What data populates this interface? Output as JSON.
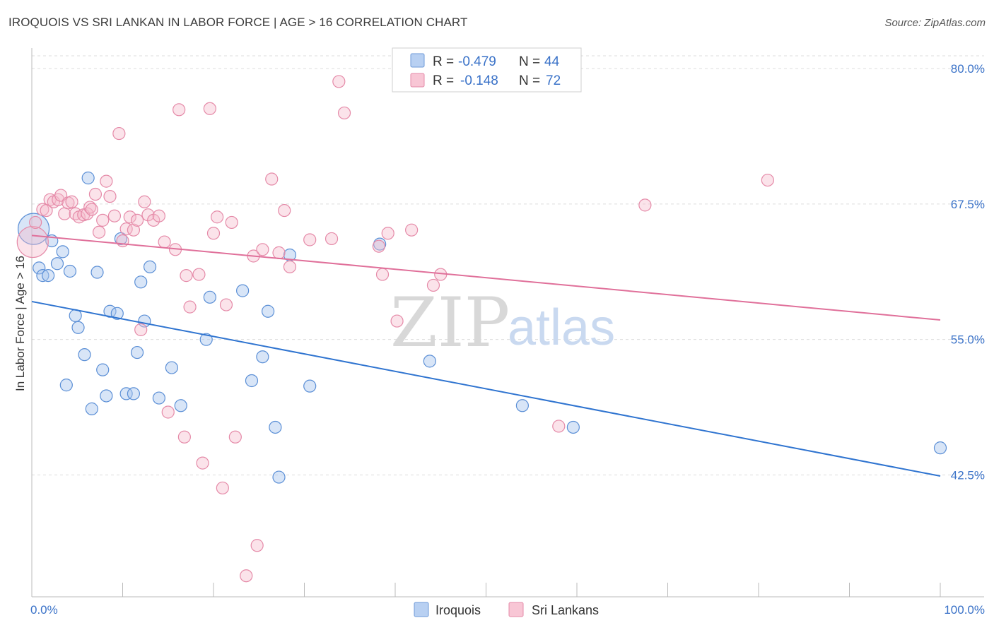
{
  "title": "IROQUOIS VS SRI LANKAN IN LABOR FORCE | AGE > 16 CORRELATION CHART",
  "source": "Source: ZipAtlas.com",
  "colors": {
    "iroquois": "#5b8fd6",
    "iroquois_fill": "#a9c6ee",
    "srilankan": "#e06b95",
    "srilankan_fill": "#f5b8cb",
    "accent": "#3a72c8"
  },
  "legend": {
    "rows": [
      {
        "r_label": "R = ",
        "r_value": "-0.479",
        "n_label": "N = ",
        "n_value": "44"
      },
      {
        "r_label": "R = ",
        "r_value": "-0.148",
        "n_label": "N = ",
        "n_value": "72"
      }
    ]
  },
  "bottom_legend": [
    "Iroquois",
    "Sri Lankans"
  ],
  "watermark": {
    "zip": "ZIP",
    "atlas": "atlas"
  },
  "chart_data": {
    "type": "scatter",
    "title": "IROQUOIS VS SRI LANKAN IN LABOR FORCE | AGE > 16 CORRELATION CHART",
    "xlabel": "",
    "ylabel": "In Labor Force | Age > 16",
    "xlim": [
      0,
      100
    ],
    "ylim": [
      32,
      80.5
    ],
    "x_tick_labels": [
      "0.0%",
      "100.0%"
    ],
    "y_ticks": [
      42.5,
      55.0,
      67.5,
      80.0
    ],
    "y_tick_labels": [
      "42.5%",
      "55.0%",
      "67.5%",
      "80.0%"
    ],
    "grid": true,
    "legend_position": "top-center",
    "series": [
      {
        "name": "Iroquois",
        "r": -0.479,
        "n": 44,
        "trend": {
          "x": [
            0,
            100
          ],
          "y": [
            58.5,
            42.4
          ]
        },
        "points": [
          [
            0.2,
            65.2
          ],
          [
            0.8,
            61.6
          ],
          [
            1.2,
            60.9
          ],
          [
            1.8,
            60.9
          ],
          [
            2.2,
            64.1
          ],
          [
            2.8,
            62.0
          ],
          [
            3.4,
            63.1
          ],
          [
            4.2,
            61.3
          ],
          [
            4.8,
            57.2
          ],
          [
            5.1,
            56.1
          ],
          [
            5.8,
            53.6
          ],
          [
            6.2,
            69.9
          ],
          [
            3.8,
            50.8
          ],
          [
            6.6,
            48.6
          ],
          [
            7.2,
            61.2
          ],
          [
            7.8,
            52.2
          ],
          [
            8.2,
            49.8
          ],
          [
            8.6,
            57.6
          ],
          [
            9.4,
            57.4
          ],
          [
            9.8,
            64.3
          ],
          [
            10.4,
            50.0
          ],
          [
            11.2,
            50.0
          ],
          [
            11.6,
            53.8
          ],
          [
            12.0,
            60.3
          ],
          [
            12.4,
            56.7
          ],
          [
            13.0,
            61.7
          ],
          [
            14.0,
            49.6
          ],
          [
            15.4,
            52.4
          ],
          [
            16.4,
            48.9
          ],
          [
            19.2,
            55.0
          ],
          [
            19.6,
            58.9
          ],
          [
            23.2,
            59.5
          ],
          [
            24.2,
            51.2
          ],
          [
            25.4,
            53.4
          ],
          [
            26.0,
            57.6
          ],
          [
            26.8,
            46.9
          ],
          [
            27.2,
            42.3
          ],
          [
            28.4,
            62.8
          ],
          [
            30.6,
            50.7
          ],
          [
            38.3,
            63.8
          ],
          [
            43.8,
            53.0
          ],
          [
            54.0,
            48.9
          ],
          [
            59.6,
            46.9
          ],
          [
            100.0,
            45.0
          ]
        ]
      },
      {
        "name": "Sri Lankans",
        "r": -0.148,
        "n": 72,
        "trend": {
          "x": [
            0,
            100
          ],
          "y": [
            64.6,
            56.8
          ]
        },
        "points": [
          [
            0.1,
            64.0
          ],
          [
            0.4,
            65.8
          ],
          [
            1.2,
            67.0
          ],
          [
            1.6,
            66.9
          ],
          [
            2.0,
            67.9
          ],
          [
            2.4,
            67.7
          ],
          [
            2.9,
            67.9
          ],
          [
            3.2,
            68.3
          ],
          [
            3.6,
            66.6
          ],
          [
            4.0,
            67.6
          ],
          [
            4.4,
            67.7
          ],
          [
            4.8,
            66.6
          ],
          [
            5.2,
            66.3
          ],
          [
            5.7,
            66.5
          ],
          [
            6.1,
            66.6
          ],
          [
            6.4,
            67.2
          ],
          [
            6.6,
            67.0
          ],
          [
            7.0,
            68.4
          ],
          [
            7.4,
            64.9
          ],
          [
            7.8,
            66.0
          ],
          [
            8.2,
            69.6
          ],
          [
            8.6,
            68.2
          ],
          [
            9.1,
            66.4
          ],
          [
            9.6,
            74.0
          ],
          [
            10.0,
            64.1
          ],
          [
            10.4,
            65.2
          ],
          [
            10.8,
            66.3
          ],
          [
            11.2,
            65.1
          ],
          [
            11.6,
            66.0
          ],
          [
            12.0,
            55.9
          ],
          [
            12.4,
            67.7
          ],
          [
            12.8,
            66.5
          ],
          [
            13.4,
            66.0
          ],
          [
            14.0,
            66.4
          ],
          [
            14.6,
            64.0
          ],
          [
            15.0,
            48.3
          ],
          [
            15.8,
            63.3
          ],
          [
            16.2,
            76.2
          ],
          [
            16.8,
            46.0
          ],
          [
            17.0,
            60.9
          ],
          [
            17.4,
            58.0
          ],
          [
            18.4,
            61.0
          ],
          [
            18.8,
            43.6
          ],
          [
            19.6,
            76.3
          ],
          [
            20.0,
            64.8
          ],
          [
            20.4,
            66.3
          ],
          [
            21.0,
            41.3
          ],
          [
            21.4,
            58.2
          ],
          [
            22.0,
            65.8
          ],
          [
            22.4,
            46.0
          ],
          [
            23.6,
            33.2
          ],
          [
            24.4,
            62.7
          ],
          [
            24.8,
            36.0
          ],
          [
            25.4,
            63.3
          ],
          [
            26.4,
            69.8
          ],
          [
            27.2,
            63.0
          ],
          [
            27.8,
            66.9
          ],
          [
            28.4,
            61.7
          ],
          [
            30.6,
            64.2
          ],
          [
            33.0,
            64.3
          ],
          [
            33.8,
            78.8
          ],
          [
            34.4,
            75.9
          ],
          [
            38.2,
            63.6
          ],
          [
            38.6,
            61.0
          ],
          [
            39.2,
            64.8
          ],
          [
            40.2,
            56.7
          ],
          [
            41.8,
            65.1
          ],
          [
            44.2,
            60.0
          ],
          [
            45.0,
            61.0
          ],
          [
            58.0,
            47.0
          ],
          [
            67.5,
            67.4
          ],
          [
            81.0,
            69.7
          ]
        ]
      }
    ]
  }
}
